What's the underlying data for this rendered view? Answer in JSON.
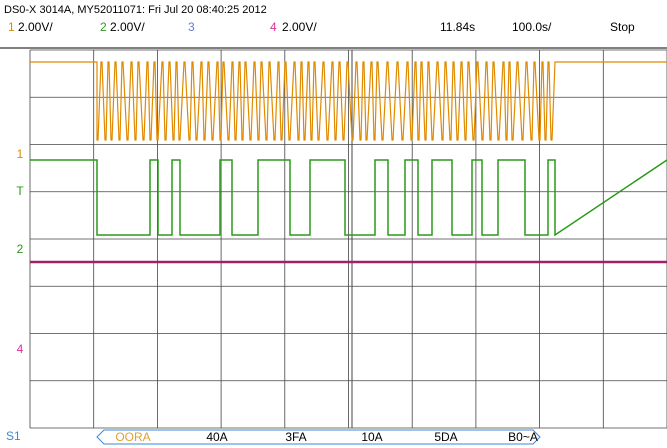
{
  "header": {
    "title": "DS0-X 3014A, MY52011071: Fri Jul 20 08:40:25 2012",
    "channels": [
      {
        "num": "1",
        "scale": "2.00V/",
        "color": "#e08a00"
      },
      {
        "num": "2",
        "scale": "2.00V/",
        "color": "#2a9a1a"
      },
      {
        "num": "3",
        "scale": "",
        "color": "#6a7ad0"
      },
      {
        "num": "4",
        "scale": "2.00V/",
        "color": "#e0309a"
      }
    ],
    "delay": "11.84s",
    "timebase": "100.0s/",
    "status": "Stop"
  },
  "markers": [
    "1",
    "T",
    "2",
    "4"
  ],
  "decode": {
    "label": "S1",
    "values": [
      "OORA",
      "40A",
      "3FA",
      "10A",
      "5DA",
      "B0~A"
    ]
  }
}
